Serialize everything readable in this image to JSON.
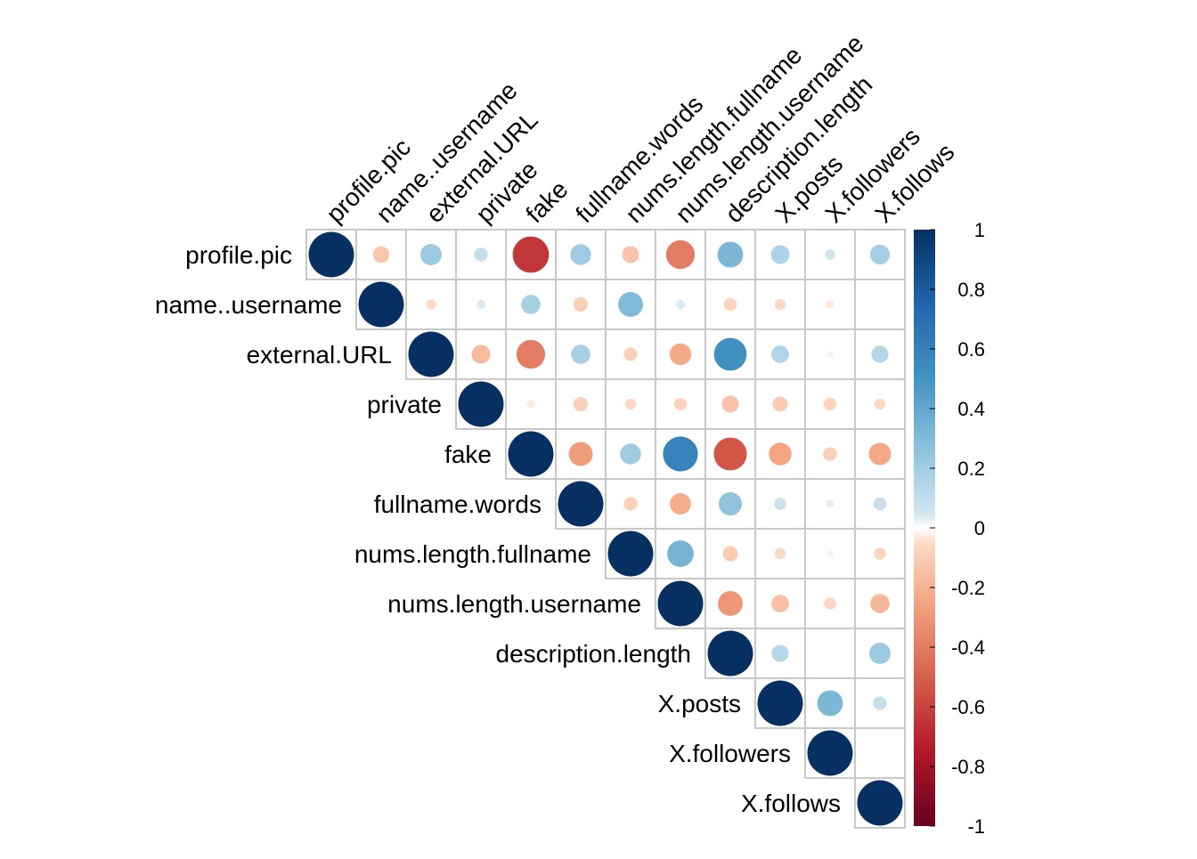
{
  "chart_data": {
    "type": "heatmap",
    "style": "corrplot upper triangle, circle glyphs",
    "variables": [
      "profile.pic",
      "name..username",
      "external.URL",
      "private",
      "fake",
      "fullname.words",
      "nums.length.fullname",
      "nums.length.username",
      "description.length",
      "X.posts",
      "X.followers",
      "X.follows"
    ],
    "matrix": [
      [
        1.0,
        -0.13,
        0.22,
        0.09,
        -0.64,
        0.21,
        -0.14,
        -0.4,
        0.32,
        0.17,
        0.05,
        0.19
      ],
      [
        -0.13,
        1.0,
        -0.05,
        0.04,
        0.18,
        -0.1,
        0.3,
        0.04,
        -0.08,
        -0.06,
        -0.03,
        0.0
      ],
      [
        0.22,
        -0.05,
        1.0,
        -0.17,
        -0.4,
        0.18,
        -0.09,
        -0.23,
        0.52,
        0.15,
        0.02,
        0.14
      ],
      [
        0.09,
        0.04,
        -0.17,
        1.0,
        -0.03,
        -0.1,
        -0.06,
        -0.08,
        -0.14,
        -0.11,
        -0.08,
        -0.06
      ],
      [
        -0.64,
        0.18,
        -0.4,
        -0.03,
        1.0,
        -0.28,
        0.21,
        0.59,
        -0.53,
        -0.25,
        -0.09,
        -0.24
      ],
      [
        0.21,
        -0.1,
        0.18,
        -0.1,
        -0.28,
        1.0,
        -0.09,
        -0.22,
        0.26,
        0.07,
        0.03,
        0.08
      ],
      [
        -0.14,
        0.3,
        -0.09,
        -0.06,
        0.21,
        -0.09,
        1.0,
        0.34,
        -0.11,
        -0.06,
        -0.02,
        -0.07
      ],
      [
        -0.4,
        0.04,
        -0.23,
        -0.08,
        0.59,
        -0.22,
        0.34,
        1.0,
        -0.3,
        -0.15,
        -0.07,
        -0.18
      ],
      [
        0.32,
        -0.08,
        0.52,
        -0.14,
        -0.53,
        0.26,
        -0.11,
        -0.3,
        1.0,
        0.14,
        0.0,
        0.22
      ],
      [
        0.17,
        -0.06,
        0.15,
        -0.11,
        -0.25,
        0.07,
        -0.06,
        -0.15,
        0.14,
        1.0,
        0.32,
        0.09
      ],
      [
        0.05,
        -0.03,
        0.02,
        -0.08,
        -0.09,
        0.03,
        -0.02,
        -0.07,
        0.0,
        0.32,
        1.0,
        0.01
      ],
      [
        0.19,
        0.0,
        0.14,
        -0.06,
        -0.24,
        0.08,
        -0.07,
        -0.18,
        0.22,
        0.09,
        0.01,
        1.0
      ]
    ],
    "colorbar": {
      "range": [
        -1,
        1
      ],
      "ticks": [
        "1",
        "0.8",
        "0.6",
        "0.4",
        "0.2",
        "0",
        "-0.2",
        "-0.4",
        "-0.6",
        "-0.8",
        "-1"
      ]
    },
    "colors": {
      "negative_end": "#67001F",
      "positive_end": "#053061",
      "grid_line": "#C8C8C8"
    },
    "title": "",
    "xlabel": "",
    "ylabel": ""
  }
}
